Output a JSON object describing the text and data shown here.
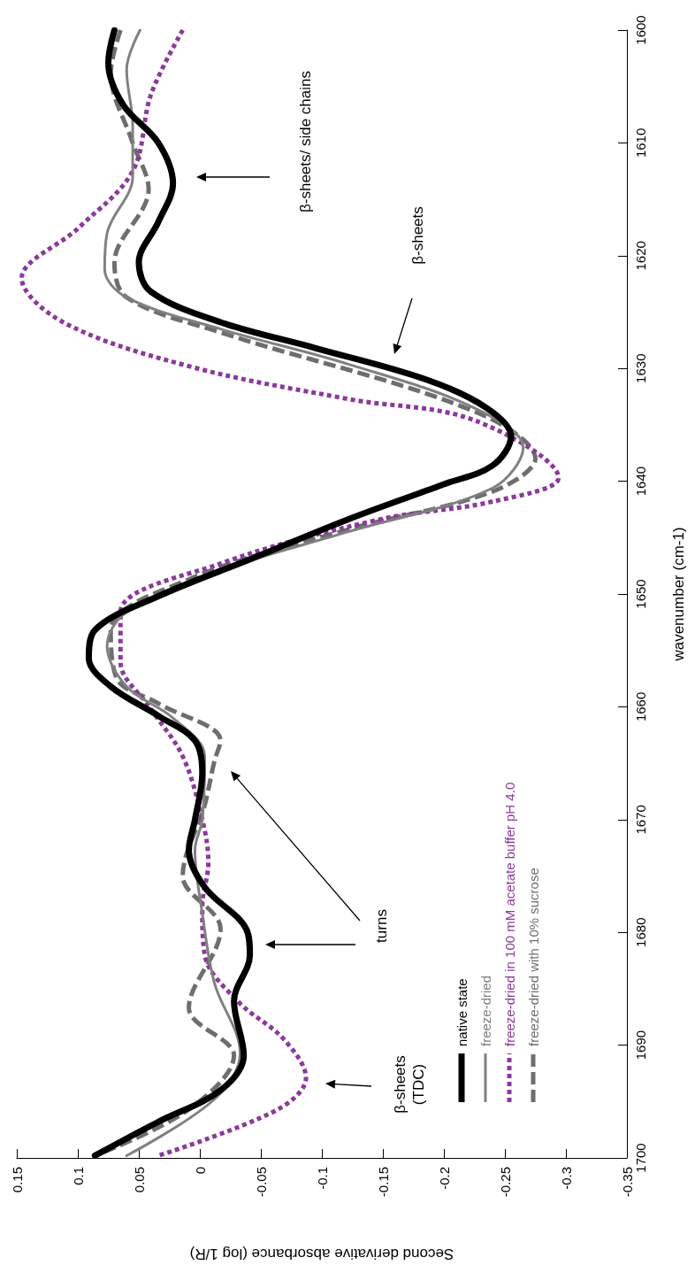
{
  "chart_data": {
    "type": "line",
    "xlabel": "Second derivative absorbance (log 1/R)",
    "ylabel": "wavenumber (cm-1)",
    "xlim": [
      0.15,
      -0.35
    ],
    "xticks": [
      0.15,
      0.1,
      0.05,
      0,
      -0.05,
      -0.1,
      -0.15,
      -0.2,
      -0.25,
      -0.3,
      -0.35
    ],
    "ylim": [
      1700,
      1600
    ],
    "yticks": [
      1600,
      1610,
      1620,
      1630,
      1640,
      1650,
      1660,
      1670,
      1680,
      1690,
      1700
    ],
    "grid": false,
    "legend": "bottom",
    "series": [
      {
        "name": "native state",
        "color": "#000000",
        "line_style": "solid",
        "values": [
          1600,
          1602.9,
          1606.6,
          1610,
          1613.6,
          1617,
          1620.6,
          1623.2,
          1625.9,
          1628.2,
          1631,
          1633.5,
          1636,
          1638.6,
          1640.3,
          1643.4,
          1646.8,
          1650.2,
          1653.2,
          1655.7,
          1658.2,
          1660.8,
          1663,
          1665.9,
          1670,
          1672.7,
          1676,
          1679.7,
          1682,
          1686.1,
          1690.9,
          1694,
          1696.8,
          1699.8
        ],
        "x": [
          0.07,
          0.075,
          0.063,
          0.034,
          0.022,
          0.034,
          0.05,
          0.04,
          -0.017,
          -0.095,
          -0.186,
          -0.235,
          -0.255,
          -0.24,
          -0.199,
          -0.121,
          -0.044,
          0.034,
          0.086,
          0.091,
          0.073,
          0.034,
          0.004,
          -0.002,
          0.004,
          0.009,
          -0.004,
          -0.038,
          -0.041,
          -0.028,
          -0.036,
          -0.017,
          0.034,
          0.086
        ]
      },
      {
        "name": "freeze-dried",
        "color": "#808080",
        "line_style": "solid",
        "values": [
          1600,
          1603.5,
          1608.5,
          1613,
          1618,
          1621.2,
          1623.7,
          1626.5,
          1629.6,
          1633.5,
          1637,
          1640.6,
          1644.5,
          1647.9,
          1651.6,
          1654.6,
          1658.2,
          1661,
          1664.4,
          1670,
          1672.7,
          1678.3,
          1684.5,
          1690.7,
          1694.8,
          1699.8
        ],
        "x": [
          0.049,
          0.06,
          0.055,
          0.055,
          0.076,
          0.078,
          0.06,
          -0.017,
          -0.121,
          -0.225,
          -0.265,
          -0.24,
          -0.121,
          -0.017,
          0.06,
          0.076,
          0.06,
          0.022,
          -0.004,
          -0.002,
          0.004,
          -0.002,
          -0.012,
          -0.033,
          -0.012,
          0.06
        ]
      },
      {
        "name": "freeze-dried in 100 mM acetate buffer pH 4.0",
        "color": "#8b3a9b",
        "line_style": "dotted",
        "values": [
          1600,
          1605.7,
          1612.5,
          1617.5,
          1622,
          1625.9,
          1629.8,
          1632.7,
          1634.6,
          1639.7,
          1641.8,
          1643.4,
          1647.3,
          1651.6,
          1656,
          1660.2,
          1664.4,
          1670,
          1673.8,
          1677.7,
          1682,
          1686.1,
          1689.5,
          1692.9,
          1695.7,
          1699.8
        ],
        "x": [
          0.014,
          0.04,
          0.055,
          0.099,
          0.146,
          0.112,
          0.009,
          -0.121,
          -0.225,
          -0.294,
          -0.24,
          -0.147,
          -0.017,
          0.065,
          0.065,
          0.04,
          0.014,
          -0.002,
          -0.007,
          -0.002,
          -0.004,
          -0.031,
          -0.069,
          -0.087,
          -0.064,
          0.034
        ]
      },
      {
        "name": "freeze-dried with 10% sucrose",
        "color": "#6e6e6e",
        "line_style": "dashed",
        "values": [
          1600,
          1603.8,
          1610,
          1614.1,
          1620.6,
          1623.7,
          1626.8,
          1633.8,
          1638,
          1640.9,
          1644.3,
          1648.7,
          1653.2,
          1657.5,
          1659.7,
          1663,
          1664.8,
          1668.7,
          1675,
          1679.7,
          1686.7,
          1690.9,
          1695.7,
          1699.8
        ],
        "x": [
          0.065,
          0.073,
          0.055,
          0.042,
          0.07,
          0.06,
          -0.017,
          -0.225,
          -0.275,
          -0.24,
          -0.121,
          0.009,
          0.073,
          0.068,
          0.034,
          -0.017,
          -0.012,
          -0.004,
          0.014,
          -0.017,
          0.009,
          -0.028,
          0.009,
          0.086
        ]
      }
    ],
    "annotations": [
      "β-sheets/ side chains",
      "β-sheets",
      "turns",
      "β-sheets\n(TDC)"
    ]
  }
}
